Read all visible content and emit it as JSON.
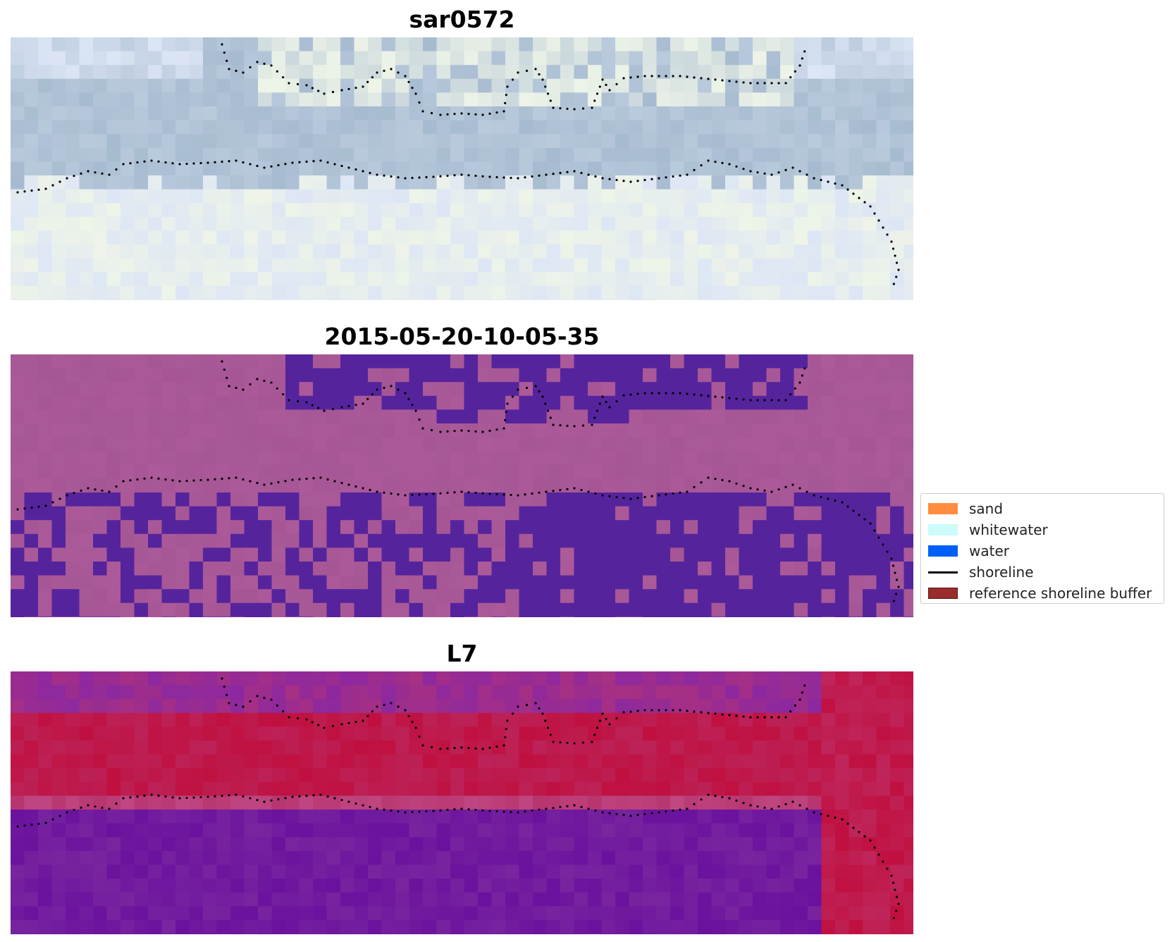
{
  "panels": [
    {
      "id": "rgb",
      "title": "sar0572"
    },
    {
      "id": "class",
      "title": "2015-05-20-10-05-35"
    },
    {
      "id": "mndwi",
      "title": "L7"
    }
  ],
  "legend": {
    "items": [
      {
        "label": "sand",
        "kind": "patch",
        "color": "#ff8c3f"
      },
      {
        "label": "whitewater",
        "kind": "patch",
        "color": "#cbfbfb"
      },
      {
        "label": "water",
        "kind": "patch",
        "color": "#005ff7"
      },
      {
        "label": "shoreline",
        "kind": "line",
        "color": "#000000"
      },
      {
        "label": "reference shoreline buffer",
        "kind": "patch",
        "color": "#9b2c2c"
      }
    ]
  },
  "colors": {
    "rgb_water": "#a7bbd0",
    "rgb_land": "#dde6f5",
    "rgb_bright": "#eef4e8",
    "class_base": "#a65695",
    "class_water": "#55249d",
    "mndwi_purple": "#6a119e",
    "mndwi_red": "#c01040",
    "mndwi_mid": "#b8356f"
  }
}
